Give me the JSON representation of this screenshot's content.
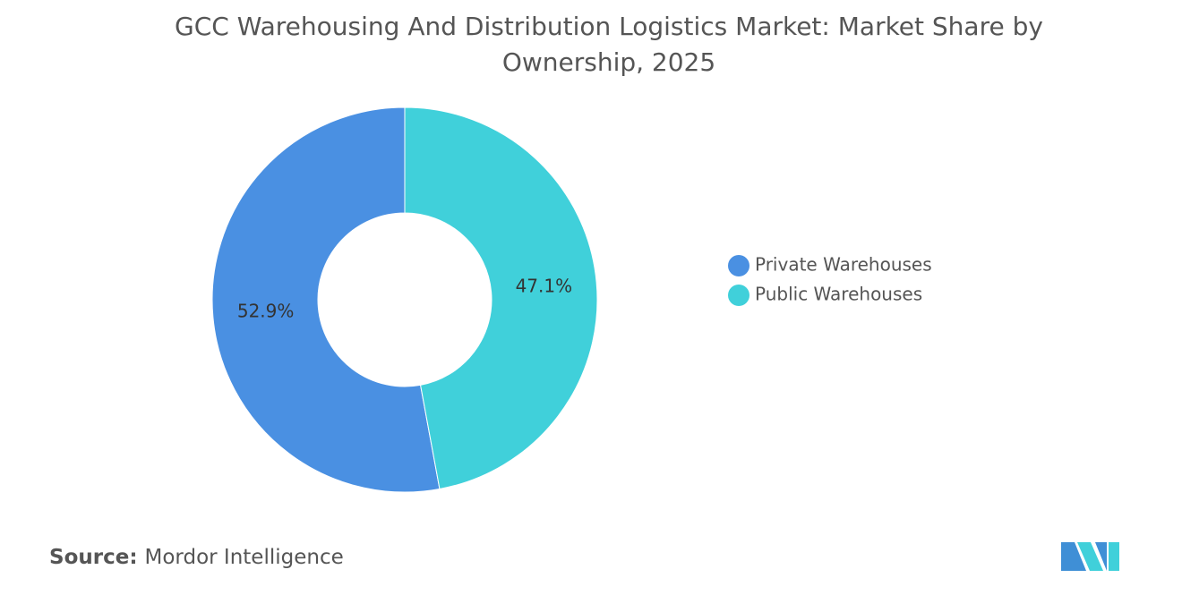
{
  "chart_data": {
    "type": "donut",
    "title": "GCC Warehousing And Distribution Logistics Market: Market Share by Ownership, 2025",
    "categories": [
      "Private Warehouses",
      "Public Warehouses"
    ],
    "values": [
      52.9,
      47.1
    ],
    "value_labels": [
      "52.9%",
      "47.1%"
    ],
    "colors": [
      "#4a90e2",
      "#40d0da"
    ],
    "legend": "right"
  },
  "source": {
    "label": "Source:",
    "text": "Mordor Intelligence"
  }
}
